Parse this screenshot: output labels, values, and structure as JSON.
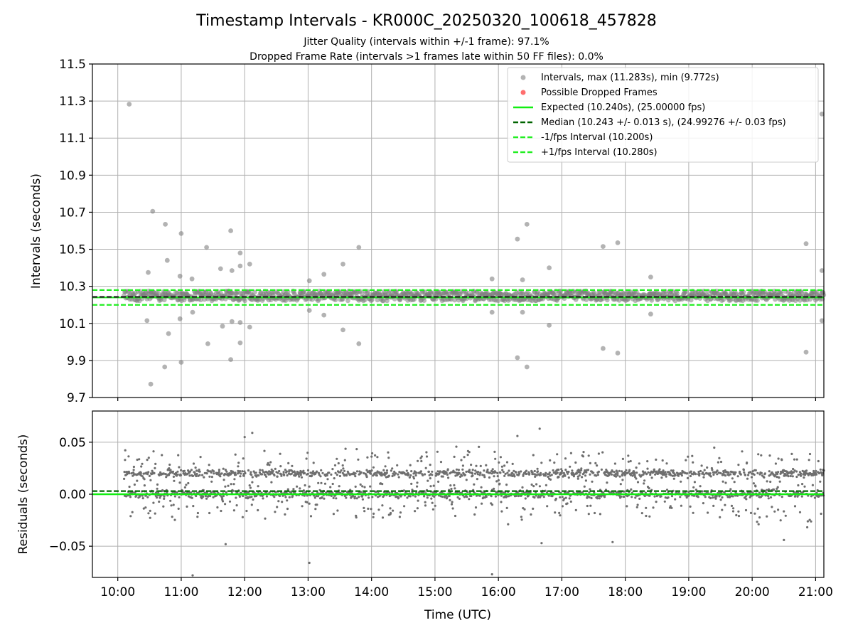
{
  "chart_data": [
    {
      "type": "scatter",
      "title": "Timestamp Intervals - KR000C_20250320_100618_457828",
      "subtitle_lines": [
        "Jitter Quality (intervals within +/-1 frame): 97.1%",
        "Dropped Frame Rate (intervals >1 frames late within 50 FF files): 0.0%"
      ],
      "xlabel": "",
      "ylabel": "Intervals (seconds)",
      "x_unit": "hours UTC",
      "xlim": [
        9.6,
        21.13
      ],
      "ylim": [
        9.7,
        11.5
      ],
      "yticks": [
        9.7,
        9.9,
        10.1,
        10.3,
        10.5,
        10.7,
        10.9,
        11.1,
        11.3,
        11.5
      ],
      "ytick_labels": [
        "9.7",
        "9.9",
        "10.1",
        "10.3",
        "10.5",
        "10.7",
        "10.9",
        "11.1",
        "11.3",
        "11.5"
      ],
      "grid": true,
      "legend_position": "top-right",
      "legend": [
        "Intervals, max (11.283s), min (9.772s)",
        "Possible Dropped Frames",
        "Expected (10.240s), (25.00000 fps)",
        "Median (10.243 +/- 0.013 s), (24.99276 +/- 0.03 fps)",
        "-1/fps Interval (10.200s)",
        "+1/fps Interval (10.280s)"
      ],
      "reference_lines": {
        "expected": 10.24,
        "median": 10.243,
        "minus_one_frame": 10.2,
        "plus_one_frame": 10.28
      },
      "data_start_hour": 10.1,
      "data_end_hour": 21.13,
      "core_band": [
        10.222,
        10.275
      ],
      "outliers": [
        {
          "x": 10.18,
          "y": 11.283
        },
        {
          "x": 10.48,
          "y": 10.375
        },
        {
          "x": 10.46,
          "y": 10.115
        },
        {
          "x": 10.55,
          "y": 10.705
        },
        {
          "x": 10.52,
          "y": 9.772
        },
        {
          "x": 10.75,
          "y": 10.635
        },
        {
          "x": 10.78,
          "y": 10.44
        },
        {
          "x": 10.74,
          "y": 9.865
        },
        {
          "x": 10.8,
          "y": 10.045
        },
        {
          "x": 10.98,
          "y": 10.355
        },
        {
          "x": 10.98,
          "y": 10.125
        },
        {
          "x": 11.0,
          "y": 10.585
        },
        {
          "x": 11.0,
          "y": 9.89
        },
        {
          "x": 11.17,
          "y": 10.34
        },
        {
          "x": 11.18,
          "y": 10.16
        },
        {
          "x": 11.4,
          "y": 10.51
        },
        {
          "x": 11.42,
          "y": 9.99
        },
        {
          "x": 11.62,
          "y": 10.395
        },
        {
          "x": 11.65,
          "y": 10.085
        },
        {
          "x": 11.78,
          "y": 10.6
        },
        {
          "x": 11.8,
          "y": 10.385
        },
        {
          "x": 11.78,
          "y": 9.905
        },
        {
          "x": 11.8,
          "y": 10.11
        },
        {
          "x": 11.93,
          "y": 10.48
        },
        {
          "x": 11.93,
          "y": 10.41
        },
        {
          "x": 11.93,
          "y": 10.105
        },
        {
          "x": 11.93,
          "y": 9.995
        },
        {
          "x": 12.08,
          "y": 10.42
        },
        {
          "x": 12.08,
          "y": 10.08
        },
        {
          "x": 13.02,
          "y": 10.33
        },
        {
          "x": 13.02,
          "y": 10.17
        },
        {
          "x": 13.25,
          "y": 10.365
        },
        {
          "x": 13.25,
          "y": 10.145
        },
        {
          "x": 13.55,
          "y": 10.42
        },
        {
          "x": 13.55,
          "y": 10.065
        },
        {
          "x": 13.8,
          "y": 10.51
        },
        {
          "x": 13.8,
          "y": 9.99
        },
        {
          "x": 15.9,
          "y": 10.34
        },
        {
          "x": 15.9,
          "y": 10.16
        },
        {
          "x": 16.3,
          "y": 10.555
        },
        {
          "x": 16.3,
          "y": 9.915
        },
        {
          "x": 16.45,
          "y": 10.635
        },
        {
          "x": 16.45,
          "y": 9.865
        },
        {
          "x": 16.38,
          "y": 10.335
        },
        {
          "x": 16.38,
          "y": 10.16
        },
        {
          "x": 16.8,
          "y": 10.4
        },
        {
          "x": 16.8,
          "y": 10.09
        },
        {
          "x": 17.65,
          "y": 10.515
        },
        {
          "x": 17.65,
          "y": 9.965
        },
        {
          "x": 17.88,
          "y": 10.535
        },
        {
          "x": 17.88,
          "y": 9.94
        },
        {
          "x": 18.4,
          "y": 10.35
        },
        {
          "x": 18.4,
          "y": 10.15
        },
        {
          "x": 20.85,
          "y": 10.53
        },
        {
          "x": 20.85,
          "y": 9.945
        },
        {
          "x": 21.1,
          "y": 11.23
        },
        {
          "x": 21.1,
          "y": 10.385
        },
        {
          "x": 21.1,
          "y": 10.115
        }
      ]
    },
    {
      "type": "scatter",
      "title": "",
      "xlabel": "Time (UTC)",
      "ylabel": "Residuals (seconds)",
      "xlim": [
        9.6,
        21.13
      ],
      "ylim": [
        -0.08,
        0.08
      ],
      "yticks": [
        -0.05,
        0.0,
        0.05
      ],
      "ytick_labels": [
        "−0.05",
        "0.00",
        "0.05"
      ],
      "xticks": [
        10,
        11,
        12,
        13,
        14,
        15,
        16,
        17,
        18,
        19,
        20,
        21
      ],
      "xtick_labels": [
        "10:00",
        "11:00",
        "12:00",
        "13:00",
        "14:00",
        "15:00",
        "16:00",
        "17:00",
        "18:00",
        "19:00",
        "20:00",
        "21:00"
      ],
      "grid": true,
      "reference_lines": {
        "expected": 0.0,
        "median": 0.003
      },
      "residual_bands": [
        0.0,
        0.02
      ],
      "residual_spread": 0.062,
      "extreme_points": [
        {
          "x": 11.18,
          "y": -0.078
        },
        {
          "x": 12.0,
          "y": 0.055
        },
        {
          "x": 12.12,
          "y": 0.059
        },
        {
          "x": 13.02,
          "y": -0.066
        },
        {
          "x": 15.9,
          "y": -0.077
        },
        {
          "x": 16.3,
          "y": 0.056
        },
        {
          "x": 16.65,
          "y": 0.063
        },
        {
          "x": 16.68,
          "y": -0.047
        },
        {
          "x": 17.8,
          "y": -0.046
        },
        {
          "x": 11.7,
          "y": -0.048
        },
        {
          "x": 20.5,
          "y": -0.044
        }
      ]
    }
  ],
  "colors": {
    "points": "#808080",
    "dropped": "#ff5555",
    "expected": "#11ee11",
    "median": "#006400",
    "bounds": "#22ee22",
    "grid": "#b0b0b0"
  }
}
